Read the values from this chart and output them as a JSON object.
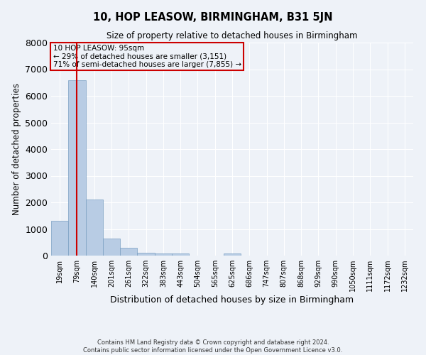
{
  "title": "10, HOP LEASOW, BIRMINGHAM, B31 5JN",
  "subtitle": "Size of property relative to detached houses in Birmingham",
  "xlabel": "Distribution of detached houses by size in Birmingham",
  "ylabel": "Number of detached properties",
  "categories": [
    "19sqm",
    "79sqm",
    "140sqm",
    "201sqm",
    "261sqm",
    "322sqm",
    "383sqm",
    "443sqm",
    "504sqm",
    "565sqm",
    "625sqm",
    "686sqm",
    "747sqm",
    "807sqm",
    "868sqm",
    "929sqm",
    "990sqm",
    "1050sqm",
    "1111sqm",
    "1172sqm",
    "1232sqm"
  ],
  "values": [
    1300,
    6600,
    2100,
    650,
    300,
    120,
    80,
    80,
    0,
    0,
    80,
    0,
    0,
    0,
    0,
    0,
    0,
    0,
    0,
    0,
    0
  ],
  "bar_color": "#b8cce4",
  "bar_edge_color": "#7a9fc2",
  "property_line_x": 1,
  "property_line_color": "#cc0000",
  "ylim": [
    0,
    8000
  ],
  "yticks": [
    0,
    1000,
    2000,
    3000,
    4000,
    5000,
    6000,
    7000,
    8000
  ],
  "annotation_title": "10 HOP LEASOW: 95sqm",
  "annotation_line1": "← 29% of detached houses are smaller (3,151)",
  "annotation_line2": "71% of semi-detached houses are larger (7,855) →",
  "annotation_box_color": "#cc0000",
  "background_color": "#eef2f8",
  "grid_color": "#ffffff",
  "footer_line1": "Contains HM Land Registry data © Crown copyright and database right 2024.",
  "footer_line2": "Contains public sector information licensed under the Open Government Licence v3.0."
}
